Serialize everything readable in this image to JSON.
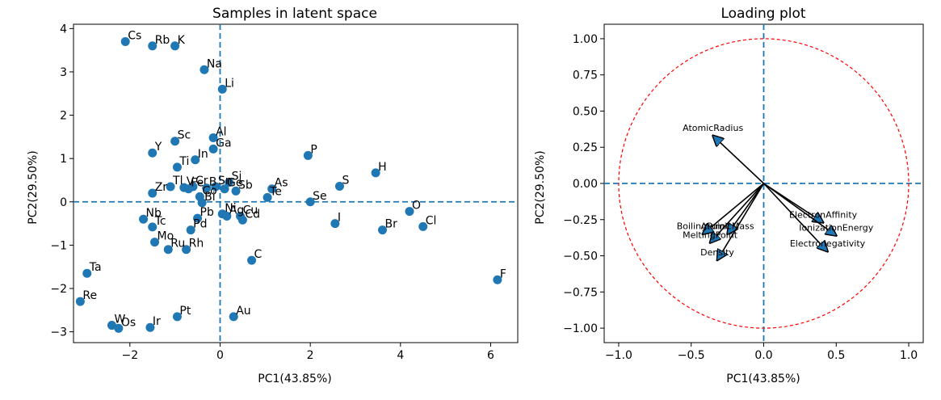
{
  "chart_data": [
    {
      "type": "scatter",
      "title": "Samples in latent space",
      "xlabel": "PC1(43.85%)",
      "ylabel": "PC2(29.50%)",
      "xlim": [
        -3.25,
        6.6
      ],
      "ylim": [
        -3.25,
        4.1
      ],
      "xticks": [
        -2,
        0,
        2,
        4,
        6
      ],
      "yticks": [
        -3,
        -2,
        -1,
        0,
        1,
        2,
        3,
        4
      ],
      "marker_color": "#1f77b4",
      "reference_lines": {
        "x": 0,
        "y": 0,
        "style": "dashed",
        "color": "#1f77b4"
      },
      "points": [
        {
          "label": "Cs",
          "x": -2.1,
          "y": 3.7
        },
        {
          "label": "Rb",
          "x": -1.5,
          "y": 3.6
        },
        {
          "label": "K",
          "x": -1.0,
          "y": 3.6
        },
        {
          "label": "Na",
          "x": -0.35,
          "y": 3.05
        },
        {
          "label": "Li",
          "x": 0.05,
          "y": 2.6
        },
        {
          "label": "Sc",
          "x": -1.0,
          "y": 1.4
        },
        {
          "label": "Al",
          "x": -0.15,
          "y": 1.48
        },
        {
          "label": "Ga",
          "x": -0.15,
          "y": 1.22
        },
        {
          "label": "Y",
          "x": -1.5,
          "y": 1.13
        },
        {
          "label": "In",
          "x": -0.55,
          "y": 0.97
        },
        {
          "label": "Ti",
          "x": -0.95,
          "y": 0.8
        },
        {
          "label": "P",
          "x": 1.95,
          "y": 1.07
        },
        {
          "label": "H",
          "x": 3.45,
          "y": 0.67
        },
        {
          "label": "Si",
          "x": 0.2,
          "y": 0.45
        },
        {
          "label": "Sn",
          "x": -0.1,
          "y": 0.35
        },
        {
          "label": "Ge",
          "x": 0.1,
          "y": 0.3
        },
        {
          "label": "Sb",
          "x": 0.35,
          "y": 0.25
        },
        {
          "label": "Cr",
          "x": -0.6,
          "y": 0.35
        },
        {
          "label": "V",
          "x": -0.8,
          "y": 0.33
        },
        {
          "label": "Fe",
          "x": -0.7,
          "y": 0.3
        },
        {
          "label": "B",
          "x": -0.3,
          "y": 0.32
        },
        {
          "label": "Tl",
          "x": -1.1,
          "y": 0.35
        },
        {
          "label": "Zr",
          "x": -1.5,
          "y": 0.2
        },
        {
          "label": "As",
          "x": 1.15,
          "y": 0.3
        },
        {
          "label": "Te",
          "x": 1.05,
          "y": 0.1
        },
        {
          "label": "Co",
          "x": -0.45,
          "y": 0.12
        },
        {
          "label": "Bi",
          "x": -0.4,
          "y": -0.02
        },
        {
          "label": "S",
          "x": 2.65,
          "y": 0.36
        },
        {
          "label": "Se",
          "x": 2.0,
          "y": 0.0
        },
        {
          "label": "O",
          "x": 4.2,
          "y": -0.22
        },
        {
          "label": "Nb",
          "x": -1.7,
          "y": -0.4
        },
        {
          "label": "Pb",
          "x": -0.5,
          "y": -0.38
        },
        {
          "label": "Ni",
          "x": 0.05,
          "y": -0.28
        },
        {
          "label": "Ag",
          "x": 0.15,
          "y": -0.33
        },
        {
          "label": "Cu",
          "x": 0.45,
          "y": -0.33
        },
        {
          "label": "Cd",
          "x": 0.5,
          "y": -0.42
        },
        {
          "label": "Tc",
          "x": -1.5,
          "y": -0.58
        },
        {
          "label": "Pd",
          "x": -0.65,
          "y": -0.65
        },
        {
          "label": "I",
          "x": 2.55,
          "y": -0.5
        },
        {
          "label": "Br",
          "x": 3.6,
          "y": -0.65
        },
        {
          "label": "Cl",
          "x": 4.5,
          "y": -0.57
        },
        {
          "label": "Mo",
          "x": -1.45,
          "y": -0.93
        },
        {
          "label": "Ru",
          "x": -1.15,
          "y": -1.1
        },
        {
          "label": "Rh",
          "x": -0.75,
          "y": -1.1
        },
        {
          "label": "C",
          "x": 0.7,
          "y": -1.35
        },
        {
          "label": "Ta",
          "x": -2.95,
          "y": -1.65
        },
        {
          "label": "F",
          "x": 6.15,
          "y": -1.8
        },
        {
          "label": "Re",
          "x": -3.1,
          "y": -2.3
        },
        {
          "label": "Pt",
          "x": -0.95,
          "y": -2.65
        },
        {
          "label": "Au",
          "x": 0.3,
          "y": -2.65
        },
        {
          "label": "W",
          "x": -2.4,
          "y": -2.85
        },
        {
          "label": "Os",
          "x": -2.25,
          "y": -2.92
        },
        {
          "label": "Ir",
          "x": -1.55,
          "y": -2.9
        }
      ]
    },
    {
      "type": "scatter",
      "title": "Loading plot",
      "xlabel": "PC1(43.85%)",
      "ylabel": "PC2(29.50%)",
      "xlim": [
        -1.1,
        1.1
      ],
      "ylim": [
        -1.1,
        1.1
      ],
      "xticks": [
        -1.0,
        -0.5,
        0.0,
        0.5,
        1.0
      ],
      "yticks": [
        -1.0,
        -0.75,
        -0.5,
        -0.25,
        0.0,
        0.25,
        0.5,
        0.75,
        1.0
      ],
      "unit_circle": {
        "radius": 1.0,
        "color": "#ff0000",
        "style": "dashed"
      },
      "reference_lines": {
        "x": 0,
        "y": 0,
        "style": "dashed",
        "color": "#1f77b4"
      },
      "vectors": [
        {
          "label": "AtomicRadius",
          "x": -0.35,
          "y": 0.33
        },
        {
          "label": "AtomicMass",
          "x": -0.25,
          "y": -0.35
        },
        {
          "label": "BoilingPoint",
          "x": -0.42,
          "y": -0.35
        },
        {
          "label": "MeltingPoint",
          "x": -0.37,
          "y": -0.41
        },
        {
          "label": "Density",
          "x": -0.32,
          "y": -0.53
        },
        {
          "label": "ElectronAffinity",
          "x": 0.41,
          "y": -0.27
        },
        {
          "label": "IonizationEnergy",
          "x": 0.5,
          "y": -0.36
        },
        {
          "label": "Electronegativity",
          "x": 0.44,
          "y": -0.47
        }
      ]
    }
  ]
}
